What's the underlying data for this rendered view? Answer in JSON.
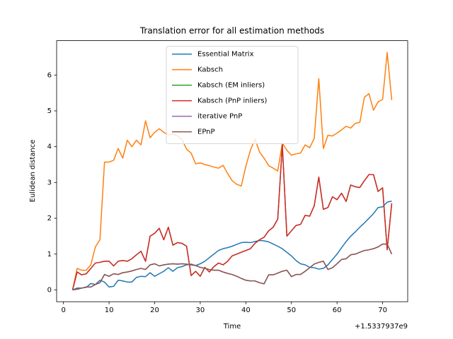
{
  "chart_data": {
    "type": "line",
    "title": "Translation error for all estimation methods",
    "xlabel": "Time",
    "ylabel": "Eulidean distance",
    "x_offset_label": "+1.5337937e9",
    "x": [
      2,
      3,
      4,
      5,
      6,
      7,
      8,
      9,
      10,
      11,
      12,
      13,
      14,
      15,
      16,
      17,
      18,
      19,
      20,
      21,
      22,
      23,
      24,
      25,
      26,
      27,
      28,
      29,
      30,
      31,
      32,
      33,
      34,
      35,
      36,
      37,
      38,
      39,
      40,
      41,
      42,
      43,
      44,
      45,
      46,
      47,
      48,
      49,
      50,
      51,
      52,
      53,
      54,
      55,
      56,
      57,
      58,
      59,
      60,
      61,
      62,
      63,
      64,
      65,
      66,
      67,
      68,
      69,
      70,
      71,
      72
    ],
    "xlim": [
      -1.5,
      75.5
    ],
    "xticks": [
      0,
      10,
      20,
      30,
      40,
      50,
      60,
      70
    ],
    "ylim": [
      -0.33,
      6.96
    ],
    "yticks": [
      0,
      1,
      2,
      3,
      4,
      5,
      6
    ],
    "legend": "upper center",
    "series": [
      {
        "name": "Essential Matrix",
        "color": "#1f77b4",
        "values": [
          0,
          0.05,
          0.05,
          0.07,
          0.18,
          0.15,
          0.27,
          0.22,
          0.08,
          0.1,
          0.27,
          0.25,
          0.22,
          0.22,
          0.35,
          0.38,
          0.37,
          0.48,
          0.38,
          0.45,
          0.52,
          0.62,
          0.52,
          0.62,
          0.65,
          0.7,
          0.72,
          0.68,
          0.73,
          0.8,
          0.9,
          1.0,
          1.1,
          1.15,
          1.18,
          1.22,
          1.27,
          1.32,
          1.33,
          1.32,
          1.35,
          1.38,
          1.37,
          1.34,
          1.28,
          1.22,
          1.15,
          1.05,
          0.95,
          0.82,
          0.73,
          0.7,
          0.63,
          0.62,
          0.58,
          0.6,
          0.7,
          0.85,
          1.0,
          1.18,
          1.35,
          1.5,
          1.62,
          1.75,
          1.87,
          2.0,
          2.13,
          2.3,
          2.32,
          2.45,
          2.48
        ]
      },
      {
        "name": "Kabsch",
        "color": "#ff7f0e",
        "values": [
          0,
          0.6,
          0.55,
          0.55,
          0.7,
          1.2,
          1.4,
          3.57,
          3.57,
          3.62,
          3.95,
          3.68,
          4.18,
          4.0,
          4.18,
          4.05,
          4.72,
          4.25,
          4.4,
          4.5,
          4.4,
          4.33,
          4.35,
          4.3,
          4.2,
          3.93,
          3.82,
          3.52,
          3.55,
          3.5,
          3.47,
          3.43,
          3.4,
          3.48,
          3.25,
          3.05,
          2.95,
          2.9,
          3.45,
          3.9,
          4.22,
          3.85,
          3.68,
          3.47,
          3.4,
          3.32,
          4.1,
          3.9,
          3.76,
          3.8,
          3.82,
          4.05,
          3.97,
          4.23,
          5.9,
          3.95,
          4.32,
          4.3,
          4.38,
          4.47,
          4.57,
          4.52,
          4.65,
          4.68,
          5.38,
          5.48,
          5.02,
          5.25,
          5.32,
          6.63,
          5.3
        ]
      },
      {
        "name": "Kabsch (EM inliers)",
        "color": "#2ca02c",
        "values": [
          0,
          0.5,
          0.42,
          0.45,
          0.6,
          0.75,
          0.77,
          0.8,
          0.8,
          0.67,
          0.8,
          0.82,
          0.8,
          0.87,
          0.98,
          1.08,
          0.8,
          1.5,
          1.58,
          1.72,
          1.4,
          1.75,
          1.25,
          1.32,
          1.3,
          1.22,
          0.4,
          0.52,
          0.38,
          0.63,
          0.5,
          0.65,
          0.75,
          0.7,
          0.8,
          0.95,
          1.0,
          1.05,
          1.1,
          1.15,
          1.3,
          1.4,
          1.47,
          1.65,
          1.75,
          1.98,
          4.05,
          1.5,
          1.65,
          1.8,
          1.83,
          2.08,
          2.06,
          2.35,
          3.15,
          2.25,
          2.3,
          2.6,
          2.52,
          2.7,
          2.47,
          2.93,
          2.88,
          2.86,
          3.05,
          3.22,
          3.22,
          2.75,
          2.85,
          1.12,
          2.42
        ]
      },
      {
        "name": "Kabsch (PnP inliers)",
        "color": "#d62728",
        "values": [
          0,
          0.5,
          0.42,
          0.45,
          0.6,
          0.75,
          0.77,
          0.8,
          0.8,
          0.67,
          0.8,
          0.82,
          0.8,
          0.87,
          0.98,
          1.08,
          0.8,
          1.5,
          1.58,
          1.72,
          1.4,
          1.75,
          1.25,
          1.32,
          1.3,
          1.22,
          0.4,
          0.52,
          0.38,
          0.63,
          0.5,
          0.65,
          0.75,
          0.7,
          0.8,
          0.95,
          1.0,
          1.05,
          1.1,
          1.15,
          1.3,
          1.4,
          1.47,
          1.65,
          1.75,
          1.98,
          4.05,
          1.5,
          1.65,
          1.8,
          1.83,
          2.08,
          2.06,
          2.35,
          3.15,
          2.25,
          2.3,
          2.6,
          2.52,
          2.7,
          2.47,
          2.93,
          2.88,
          2.86,
          3.05,
          3.22,
          3.22,
          2.75,
          2.85,
          1.12,
          2.42
        ]
      },
      {
        "name": "iterative PnP",
        "color": "#9467bd",
        "values": [
          0,
          0.02,
          0.05,
          0.08,
          0.08,
          0.15,
          0.2,
          0.43,
          0.38,
          0.45,
          0.43,
          0.48,
          0.5,
          0.53,
          0.57,
          0.6,
          0.57,
          0.7,
          0.73,
          0.67,
          0.7,
          0.72,
          0.73,
          0.72,
          0.73,
          0.72,
          0.7,
          0.68,
          0.63,
          0.6,
          0.57,
          0.55,
          0.55,
          0.5,
          0.46,
          0.43,
          0.38,
          0.32,
          0.27,
          0.25,
          0.25,
          0.2,
          0.17,
          0.42,
          0.42,
          0.47,
          0.52,
          0.55,
          0.37,
          0.43,
          0.43,
          0.52,
          0.62,
          0.72,
          0.77,
          0.8,
          0.57,
          0.62,
          0.73,
          0.85,
          0.87,
          0.98,
          1.0,
          1.05,
          1.1,
          1.12,
          1.15,
          1.2,
          1.28,
          1.28,
          1.0
        ]
      },
      {
        "name": "EPnP",
        "color": "#8c564b",
        "values": [
          0,
          0.02,
          0.05,
          0.08,
          0.08,
          0.15,
          0.2,
          0.43,
          0.38,
          0.45,
          0.43,
          0.48,
          0.5,
          0.53,
          0.57,
          0.6,
          0.57,
          0.7,
          0.73,
          0.67,
          0.7,
          0.72,
          0.73,
          0.72,
          0.73,
          0.72,
          0.7,
          0.68,
          0.63,
          0.6,
          0.57,
          0.55,
          0.55,
          0.5,
          0.46,
          0.43,
          0.38,
          0.32,
          0.27,
          0.25,
          0.25,
          0.2,
          0.17,
          0.42,
          0.42,
          0.47,
          0.52,
          0.55,
          0.37,
          0.43,
          0.43,
          0.52,
          0.62,
          0.72,
          0.77,
          0.8,
          0.57,
          0.62,
          0.73,
          0.85,
          0.87,
          0.98,
          1.0,
          1.05,
          1.1,
          1.12,
          1.15,
          1.2,
          1.28,
          1.28,
          1.0
        ]
      }
    ]
  }
}
